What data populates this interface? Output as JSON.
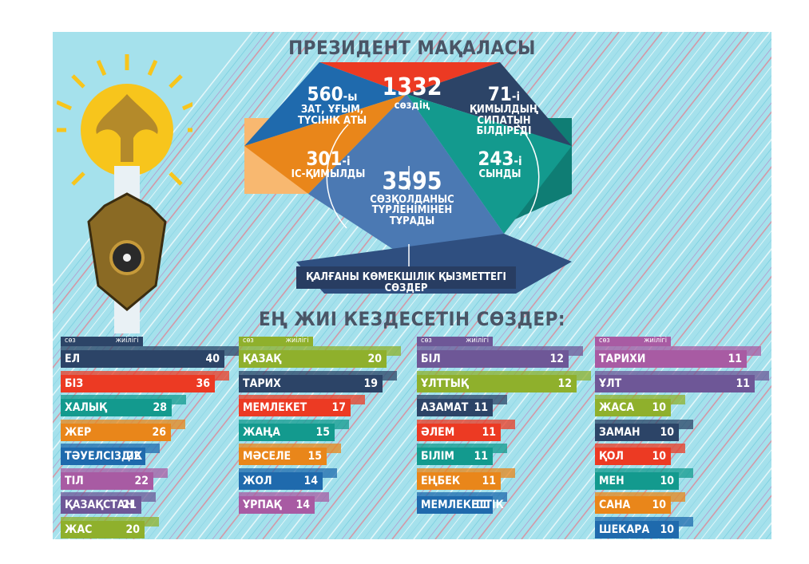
{
  "main_title": "ПРЕЗИДЕНТ МАҚАЛАСЫ",
  "freq_title": "ЕҢ ЖИІ КЕЗДЕСЕТІН СӨЗДЕР:",
  "header": {
    "word": "сөз",
    "freq": "жиілігі"
  },
  "summary": {
    "total": {
      "number": "1332",
      "label": "сөздің"
    },
    "nouns": {
      "number": "560",
      "suffix": "-ы",
      "label1": "ЗАТ, ҰҒЫМ,",
      "label2": "ТҮСІНІК АТЫ"
    },
    "actions": {
      "number": "71",
      "suffix": "-і",
      "label1": "ҚИМЫЛДЫҢ",
      "label2": "СИПАТЫН БІЛДІРЕДІ"
    },
    "verbs": {
      "number": "301",
      "suffix": "-і",
      "label1": "ІС-ҚИМЫЛДЫ"
    },
    "adjectives": {
      "number": "243",
      "suffix": "-і",
      "label1": "СЫНДЫ"
    },
    "forms": {
      "number": "3595",
      "label1": "СӨЗҚОЛДАНЫС",
      "label2": "ТҮРЛЕНІМІНЕН",
      "label3": "ТҰРАДЫ"
    },
    "rest": "ҚАЛҒАНЫ КӨМЕКШІЛІК ҚЫЗМЕТТЕГІ СӨЗДЕР"
  },
  "colors": {
    "navy": "#2c4467",
    "red": "#ec3a23",
    "teal": "#139a8e",
    "orange": "#e9861a",
    "blue": "#1f6aad",
    "purple": "#6e5797",
    "green": "#8fb02c",
    "lilac": "#a85ba3"
  },
  "chart_data": {
    "type": "bar",
    "title": "ЕҢ ЖИІ КЕЗДЕСЕТІН СӨЗДЕР:",
    "xlabel": "жиілігі",
    "ylabel": "сөз",
    "columns": [
      [
        {
          "word": "ЕЛ",
          "count": 40,
          "color": "navy"
        },
        {
          "word": "БІЗ",
          "count": 36,
          "color": "red"
        },
        {
          "word": "ХАЛЫҚ",
          "count": 28,
          "color": "teal"
        },
        {
          "word": "ЖЕР",
          "count": 26,
          "color": "orange"
        },
        {
          "word": "ТӘУЕЛСІЗДІК",
          "count": 22,
          "color": "blue"
        },
        {
          "word": "ТІЛ",
          "count": 22,
          "color": "lilac"
        },
        {
          "word": "ҚАЗАҚСТАН",
          "count": 21,
          "color": "purple"
        },
        {
          "word": "ЖАС",
          "count": 20,
          "color": "green"
        }
      ],
      [
        {
          "word": "ҚАЗАҚ",
          "count": 20,
          "color": "green"
        },
        {
          "word": "ТАРИХ",
          "count": 19,
          "color": "navy"
        },
        {
          "word": "МЕМЛЕКЕТ",
          "count": 17,
          "color": "red"
        },
        {
          "word": "ЖАҢА",
          "count": 15,
          "color": "teal"
        },
        {
          "word": "МӘСЕЛЕ",
          "count": 15,
          "color": "orange"
        },
        {
          "word": "ЖОЛ",
          "count": 14,
          "color": "blue"
        },
        {
          "word": "ҰРПАҚ",
          "count": 14,
          "color": "lilac"
        }
      ],
      [
        {
          "word": "БІЛ",
          "count": 12,
          "color": "purple"
        },
        {
          "word": "ҰЛТТЫҚ",
          "count": 12,
          "color": "green"
        },
        {
          "word": "АЗАМАТ",
          "count": 11,
          "color": "navy"
        },
        {
          "word": "ӘЛЕМ",
          "count": 11,
          "color": "red"
        },
        {
          "word": "БІЛІМ",
          "count": 11,
          "color": "teal"
        },
        {
          "word": "ЕҢБЕК",
          "count": 11,
          "color": "orange"
        },
        {
          "word": "МЕМЛЕКЕТТІК",
          "count": 11,
          "color": "blue"
        }
      ],
      [
        {
          "word": "ТАРИХИ",
          "count": 11,
          "color": "lilac"
        },
        {
          "word": "ҰЛТ",
          "count": 11,
          "color": "purple"
        },
        {
          "word": "ЖАСА",
          "count": 10,
          "color": "green"
        },
        {
          "word": "ЗАМАН",
          "count": 10,
          "color": "navy"
        },
        {
          "word": "ҚОЛ",
          "count": 10,
          "color": "red"
        },
        {
          "word": "МЕН",
          "count": 10,
          "color": "teal"
        },
        {
          "word": "САНА",
          "count": 10,
          "color": "orange"
        },
        {
          "word": "ШЕКАРА",
          "count": 10,
          "color": "blue"
        }
      ]
    ]
  }
}
